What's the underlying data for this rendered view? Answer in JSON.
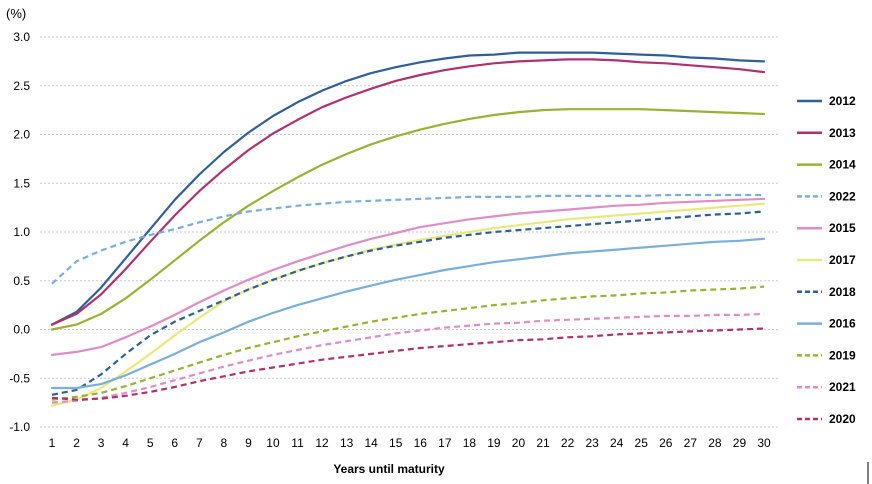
{
  "chart_data": {
    "type": "line",
    "title": "",
    "ylabel": "(%)",
    "xlabel": "Years until maturity",
    "x": [
      1,
      2,
      3,
      4,
      5,
      6,
      7,
      8,
      9,
      10,
      11,
      12,
      13,
      14,
      15,
      16,
      17,
      18,
      19,
      20,
      21,
      22,
      23,
      24,
      25,
      26,
      27,
      28,
      29,
      30
    ],
    "x_ticks": [
      "1",
      "2",
      "3",
      "4",
      "5",
      "6",
      "7",
      "8",
      "9",
      "10",
      "11",
      "12",
      "13",
      "14",
      "15",
      "16",
      "17",
      "18",
      "19",
      "20",
      "21",
      "22",
      "23",
      "24",
      "25",
      "26",
      "27",
      "28",
      "29",
      "30"
    ],
    "ylim": [
      -1.0,
      3.0
    ],
    "y_ticks": [
      "3.0",
      "2.5",
      "2.0",
      "1.5",
      "1.0",
      "0.5",
      "0.0",
      "-0.5",
      "-1.0"
    ],
    "y_tick_values": [
      3.0,
      2.5,
      2.0,
      1.5,
      1.0,
      0.5,
      0.0,
      -0.5,
      -1.0
    ],
    "grid": "horizontal dashed",
    "legend_position": "right",
    "series": [
      {
        "name": "2012",
        "color": "#2e5f9a",
        "dash": false,
        "values": [
          0.05,
          0.18,
          0.43,
          0.73,
          1.03,
          1.33,
          1.59,
          1.82,
          2.02,
          2.19,
          2.33,
          2.45,
          2.55,
          2.63,
          2.69,
          2.74,
          2.78,
          2.81,
          2.82,
          2.84,
          2.84,
          2.84,
          2.84,
          2.83,
          2.82,
          2.81,
          2.79,
          2.78,
          2.76,
          2.75
        ]
      },
      {
        "name": "2013",
        "color": "#b03070",
        "dash": false,
        "values": [
          0.05,
          0.16,
          0.36,
          0.62,
          0.9,
          1.17,
          1.42,
          1.64,
          1.84,
          2.01,
          2.15,
          2.28,
          2.38,
          2.47,
          2.55,
          2.61,
          2.66,
          2.7,
          2.73,
          2.75,
          2.76,
          2.77,
          2.77,
          2.76,
          2.74,
          2.73,
          2.71,
          2.69,
          2.67,
          2.64
        ]
      },
      {
        "name": "2014",
        "color": "#99b232",
        "dash": false,
        "values": [
          0.0,
          0.05,
          0.16,
          0.32,
          0.51,
          0.71,
          0.91,
          1.1,
          1.27,
          1.42,
          1.56,
          1.69,
          1.8,
          1.9,
          1.98,
          2.05,
          2.11,
          2.16,
          2.2,
          2.23,
          2.25,
          2.26,
          2.26,
          2.26,
          2.26,
          2.25,
          2.24,
          2.23,
          2.22,
          2.21
        ]
      },
      {
        "name": "2022",
        "color": "#7aaedc",
        "dash": true,
        "values": [
          0.47,
          0.7,
          0.81,
          0.9,
          0.97,
          1.03,
          1.1,
          1.16,
          1.21,
          1.24,
          1.27,
          1.29,
          1.31,
          1.32,
          1.33,
          1.34,
          1.35,
          1.36,
          1.36,
          1.36,
          1.37,
          1.37,
          1.37,
          1.37,
          1.37,
          1.38,
          1.38,
          1.38,
          1.38,
          1.38
        ]
      },
      {
        "name": "2015",
        "color": "#e08cc6",
        "dash": false,
        "values": [
          -0.26,
          -0.23,
          -0.18,
          -0.08,
          0.03,
          0.15,
          0.28,
          0.4,
          0.51,
          0.61,
          0.7,
          0.78,
          0.86,
          0.93,
          0.99,
          1.05,
          1.09,
          1.13,
          1.16,
          1.19,
          1.21,
          1.23,
          1.25,
          1.27,
          1.28,
          1.3,
          1.31,
          1.32,
          1.33,
          1.34
        ]
      },
      {
        "name": "2017",
        "color": "#e6ea7c",
        "dash": false,
        "values": [
          -0.78,
          -0.72,
          -0.6,
          -0.43,
          -0.25,
          -0.06,
          0.12,
          0.29,
          0.41,
          0.51,
          0.6,
          0.68,
          0.75,
          0.82,
          0.87,
          0.92,
          0.96,
          1.0,
          1.04,
          1.07,
          1.1,
          1.13,
          1.15,
          1.17,
          1.19,
          1.21,
          1.23,
          1.25,
          1.27,
          1.29
        ]
      },
      {
        "name": "2018",
        "color": "#2e5f9a",
        "dash": true,
        "values": [
          -0.67,
          -0.62,
          -0.46,
          -0.25,
          -0.06,
          0.08,
          0.19,
          0.3,
          0.41,
          0.51,
          0.6,
          0.68,
          0.75,
          0.81,
          0.86,
          0.9,
          0.94,
          0.97,
          1.0,
          1.02,
          1.04,
          1.06,
          1.08,
          1.1,
          1.12,
          1.14,
          1.16,
          1.18,
          1.19,
          1.21
        ]
      },
      {
        "name": "2016",
        "color": "#7aaedc",
        "dash": false,
        "values": [
          -0.6,
          -0.6,
          -0.56,
          -0.47,
          -0.36,
          -0.25,
          -0.13,
          -0.03,
          0.08,
          0.17,
          0.25,
          0.32,
          0.39,
          0.45,
          0.51,
          0.56,
          0.61,
          0.65,
          0.69,
          0.72,
          0.75,
          0.78,
          0.8,
          0.82,
          0.84,
          0.86,
          0.88,
          0.9,
          0.91,
          0.93
        ]
      },
      {
        "name": "2019",
        "color": "#99b232",
        "dash": true,
        "values": [
          -0.72,
          -0.69,
          -0.65,
          -0.58,
          -0.5,
          -0.42,
          -0.34,
          -0.26,
          -0.19,
          -0.13,
          -0.07,
          -0.02,
          0.03,
          0.08,
          0.12,
          0.16,
          0.19,
          0.22,
          0.25,
          0.27,
          0.3,
          0.32,
          0.34,
          0.35,
          0.37,
          0.38,
          0.4,
          0.41,
          0.42,
          0.44
        ]
      },
      {
        "name": "2021",
        "color": "#e08cc6",
        "dash": true,
        "values": [
          -0.75,
          -0.73,
          -0.7,
          -0.65,
          -0.59,
          -0.52,
          -0.45,
          -0.38,
          -0.32,
          -0.26,
          -0.21,
          -0.16,
          -0.12,
          -0.08,
          -0.04,
          -0.01,
          0.02,
          0.04,
          0.06,
          0.07,
          0.09,
          0.1,
          0.11,
          0.12,
          0.13,
          0.14,
          0.14,
          0.15,
          0.15,
          0.16
        ]
      },
      {
        "name": "2020",
        "color": "#b03070",
        "dash": true,
        "values": [
          -0.7,
          -0.72,
          -0.71,
          -0.68,
          -0.64,
          -0.59,
          -0.53,
          -0.48,
          -0.43,
          -0.39,
          -0.35,
          -0.31,
          -0.28,
          -0.25,
          -0.22,
          -0.19,
          -0.17,
          -0.15,
          -0.13,
          -0.11,
          -0.1,
          -0.08,
          -0.07,
          -0.05,
          -0.04,
          -0.03,
          -0.02,
          -0.01,
          0.0,
          0.01
        ]
      }
    ]
  }
}
